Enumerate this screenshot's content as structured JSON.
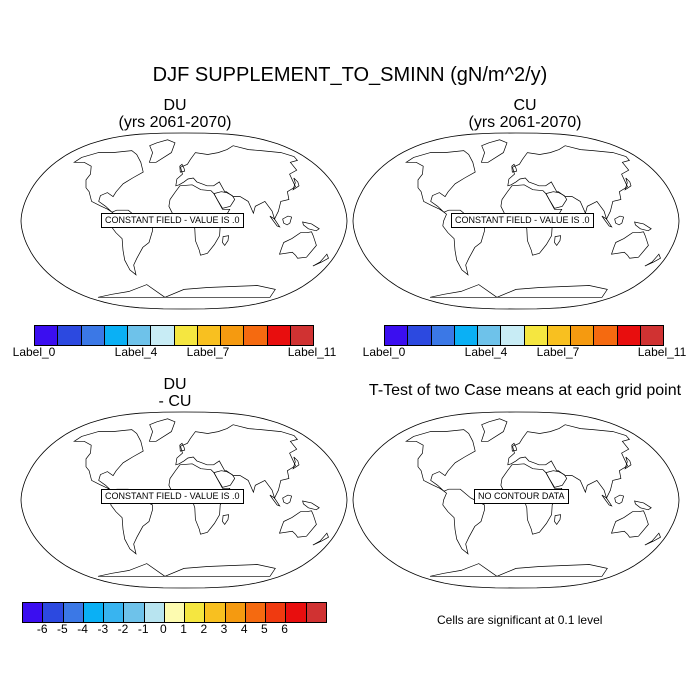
{
  "main_title": "DJF SUPPLEMENT_TO_SMINN (gN/m^2/y)",
  "panels": [
    {
      "title_line1": "DU",
      "title_line2": "(yrs 2061-2070)",
      "box": "CONSTANT FIELD - VALUE IS .0"
    },
    {
      "title_line1": "CU",
      "title_line2": "(yrs 2061-2070)",
      "box": "CONSTANT FIELD - VALUE IS .0"
    },
    {
      "title_line1": "DU",
      "title_line2": "- CU",
      "box": "CONSTANT FIELD - VALUE IS .0"
    },
    {
      "title": "T-Test of two Case means at each grid point",
      "box": "NO CONTOUR DATA"
    }
  ],
  "colorbar_top": {
    "colors": [
      "#3b0ef0",
      "#2c49e0",
      "#3b78e6",
      "#0ab0f5",
      "#6ec2ea",
      "#c8ecf5",
      "#f5e640",
      "#f8c020",
      "#f59a10",
      "#f56a10",
      "#e80e0e",
      "#d03232"
    ],
    "labels": [
      "Label_0",
      "Label_4",
      "Label_7",
      "Label_11"
    ]
  },
  "colorbar_bottom": {
    "colors": [
      "#3b0ef0",
      "#2c49e0",
      "#3b78e6",
      "#0ab0f5",
      "#38b4f0",
      "#6ec2ea",
      "#b8e4f0",
      "#fdfbb0",
      "#f5e640",
      "#f8c020",
      "#f59a10",
      "#f56a10",
      "#f03a10",
      "#e80e0e",
      "#d03232"
    ],
    "labels": [
      "-6",
      "-5",
      "-4",
      "-3",
      "-2",
      "-1",
      "0",
      "1",
      "2",
      "3",
      "4",
      "5",
      "6"
    ]
  },
  "significance_note": "Cells are significant at 0.1 level"
}
